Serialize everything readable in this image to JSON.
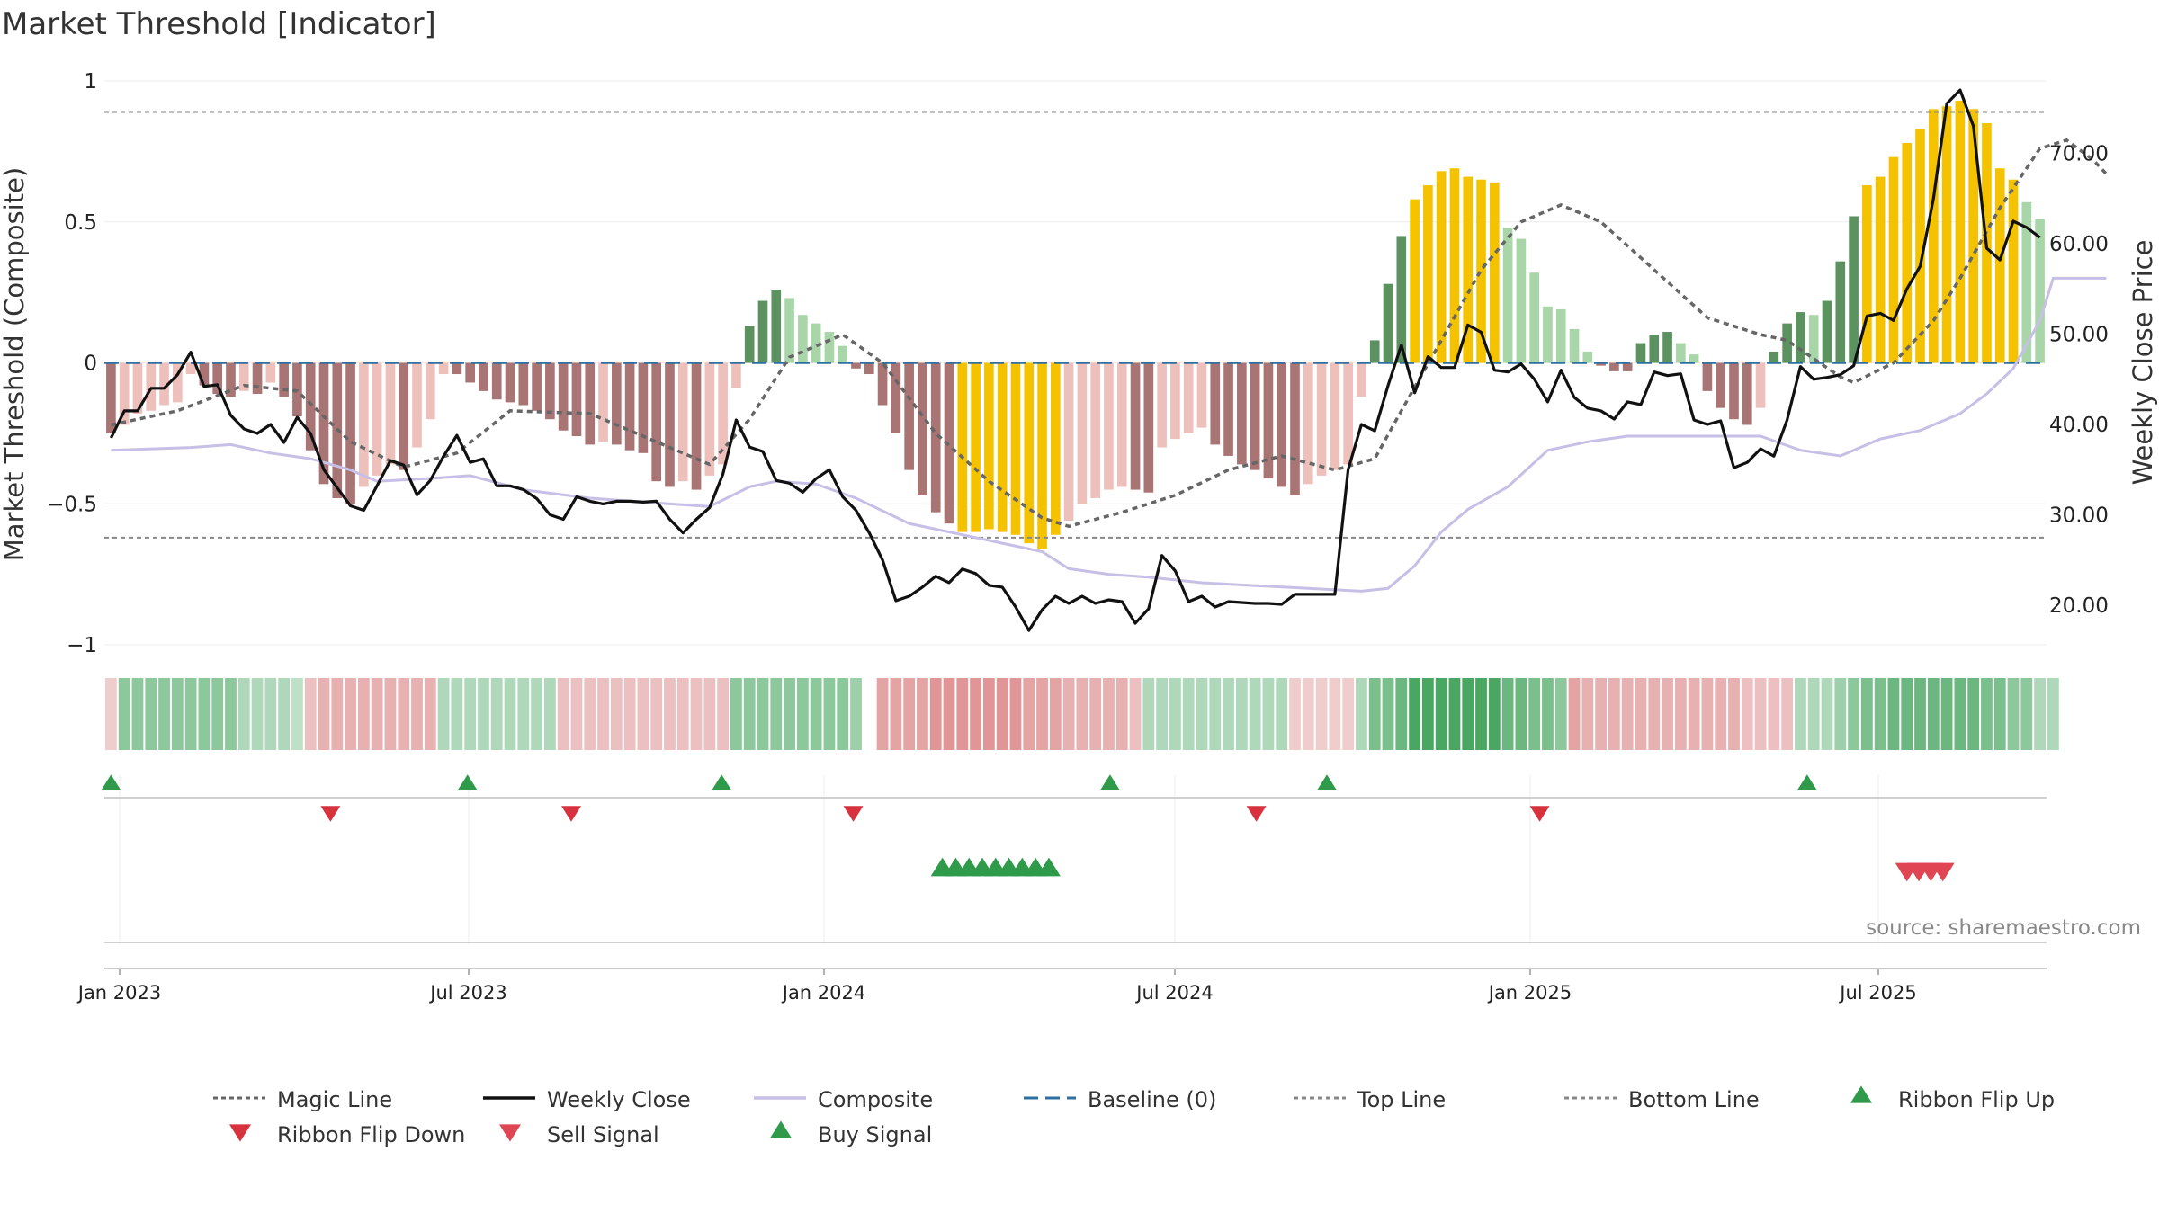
{
  "chart_data": {
    "type": "bar",
    "title": "Market Threshold [Indicator]",
    "ylabel": "Market Threshold (Composite)",
    "y2label": "Weekly Close Price",
    "source": "source: sharemaestro.com",
    "ylim": [
      -1,
      1
    ],
    "y2lim": [
      8,
      85
    ],
    "y_ticks": [
      "1",
      "0.5",
      "0",
      "−0.5",
      "−1"
    ],
    "y2_ticks": [
      "70.00",
      "60.00",
      "50.00",
      "40.00",
      "30.00",
      "20.00"
    ],
    "x_ticks": [
      "Jan 2023",
      "Jul 2023",
      "Jan 2024",
      "Jul 2024",
      "Jan 2025",
      "Jul 2025"
    ],
    "top_line": 0.89,
    "bottom_line": -0.62,
    "composite_hist": [
      -0.25,
      -0.22,
      -0.18,
      -0.17,
      -0.15,
      -0.14,
      -0.04,
      -0.08,
      -0.11,
      -0.12,
      -0.1,
      -0.11,
      -0.07,
      -0.12,
      -0.19,
      -0.31,
      -0.43,
      -0.48,
      -0.5,
      -0.44,
      -0.4,
      -0.36,
      -0.38,
      -0.3,
      -0.2,
      -0.04,
      -0.04,
      -0.07,
      -0.1,
      -0.13,
      -0.14,
      -0.15,
      -0.17,
      -0.2,
      -0.24,
      -0.26,
      -0.29,
      -0.28,
      -0.29,
      -0.31,
      -0.32,
      -0.42,
      -0.44,
      -0.42,
      -0.45,
      -0.4,
      -0.36,
      -0.09,
      0.13,
      0.22,
      0.26,
      0.23,
      0.17,
      0.14,
      0.11,
      0.06,
      -0.02,
      -0.04,
      -0.15,
      -0.25,
      -0.38,
      -0.47,
      -0.53,
      -0.57,
      -0.6,
      -0.6,
      -0.59,
      -0.6,
      -0.61,
      -0.64,
      -0.66,
      -0.61,
      -0.56,
      -0.5,
      -0.48,
      -0.45,
      -0.44,
      -0.45,
      -0.46,
      -0.3,
      -0.27,
      -0.25,
      -0.23,
      -0.29,
      -0.33,
      -0.36,
      -0.38,
      -0.41,
      -0.44,
      -0.47,
      -0.43,
      -0.4,
      -0.38,
      -0.36,
      -0.12,
      0.08,
      0.28,
      0.45,
      0.58,
      0.63,
      0.68,
      0.69,
      0.66,
      0.65,
      0.64,
      0.48,
      0.44,
      0.32,
      0.2,
      0.19,
      0.12,
      0.04,
      -0.01,
      -0.03,
      -0.03,
      0.07,
      0.1,
      0.11,
      0.07,
      0.03,
      -0.1,
      -0.16,
      -0.2,
      -0.22,
      -0.16,
      0.04,
      0.14,
      0.18,
      0.17,
      0.22,
      0.36,
      0.52,
      0.63,
      0.66,
      0.73,
      0.78,
      0.83,
      0.9,
      0.91,
      0.93,
      0.9,
      0.85,
      0.69,
      0.65,
      0.57,
      0.51
    ],
    "ribbon": [
      -0.2,
      0.5,
      0.5,
      0.5,
      0.5,
      0.5,
      0.5,
      0.5,
      0.5,
      0.5,
      0.3,
      0.3,
      0.3,
      0.3,
      0.2,
      -0.3,
      -0.4,
      -0.4,
      -0.4,
      -0.4,
      -0.4,
      -0.4,
      -0.4,
      -0.4,
      -0.4,
      0.3,
      0.3,
      0.3,
      0.3,
      0.3,
      0.3,
      0.3,
      0.3,
      0.3,
      -0.3,
      -0.3,
      -0.3,
      -0.3,
      -0.3,
      -0.3,
      -0.3,
      -0.3,
      -0.3,
      -0.3,
      -0.3,
      -0.3,
      -0.3,
      0.5,
      0.5,
      0.5,
      0.5,
      0.5,
      0.5,
      0.5,
      0.5,
      0.5,
      0.4,
      0.4,
      -0.5,
      -0.5,
      -0.5,
      -0.5,
      -0.6,
      -0.6,
      -0.6,
      -0.6,
      -0.6,
      -0.6,
      -0.6,
      -0.5,
      -0.5,
      -0.5,
      -0.4,
      -0.4,
      -0.4,
      -0.4,
      -0.4,
      -0.3,
      0.3,
      0.3,
      0.3,
      0.3,
      0.3,
      0.3,
      0.3,
      0.3,
      0.3,
      0.3,
      0.3,
      -0.2,
      -0.2,
      -0.2,
      -0.2,
      -0.2,
      0.3,
      0.6,
      0.6,
      0.7,
      0.9,
      0.9,
      0.9,
      0.9,
      0.9,
      0.9,
      0.9,
      0.7,
      0.7,
      0.6,
      0.6,
      0.5,
      -0.5,
      -0.4,
      -0.4,
      -0.4,
      -0.4,
      -0.4,
      -0.4,
      -0.4,
      -0.4,
      -0.4,
      -0.4,
      -0.4,
      -0.4,
      -0.3,
      -0.3,
      -0.3,
      -0.3,
      0.3,
      0.3,
      0.3,
      0.4,
      0.5,
      0.6,
      0.6,
      0.7,
      0.7,
      0.7,
      0.7,
      0.7,
      0.7,
      0.7,
      0.6,
      0.6,
      0.5,
      0.5,
      0.3,
      0.3
    ],
    "ribbon_gaps": [
      57
    ],
    "magic_line": [
      [
        0,
        -0.22
      ],
      [
        5,
        -0.17
      ],
      [
        10,
        -0.08
      ],
      [
        14,
        -0.1
      ],
      [
        18,
        -0.28
      ],
      [
        22,
        -0.37
      ],
      [
        26,
        -0.32
      ],
      [
        30,
        -0.17
      ],
      [
        36,
        -0.18
      ],
      [
        42,
        -0.3
      ],
      [
        45,
        -0.36
      ],
      [
        48,
        -0.2
      ],
      [
        51,
        0.02
      ],
      [
        55,
        0.1
      ],
      [
        58,
        0.0
      ],
      [
        62,
        -0.25
      ],
      [
        66,
        -0.42
      ],
      [
        70,
        -0.55
      ],
      [
        72,
        -0.58
      ],
      [
        76,
        -0.53
      ],
      [
        80,
        -0.47
      ],
      [
        84,
        -0.38
      ],
      [
        88,
        -0.33
      ],
      [
        92,
        -0.38
      ],
      [
        95,
        -0.34
      ],
      [
        97,
        -0.17
      ],
      [
        100,
        0.08
      ],
      [
        103,
        0.33
      ],
      [
        106,
        0.5
      ],
      [
        109,
        0.56
      ],
      [
        112,
        0.5
      ],
      [
        116,
        0.33
      ],
      [
        120,
        0.16
      ],
      [
        124,
        0.1
      ],
      [
        126,
        0.08
      ],
      [
        130,
        -0.05
      ],
      [
        131,
        -0.07
      ],
      [
        134,
        0.0
      ],
      [
        137,
        0.15
      ],
      [
        139,
        0.3
      ],
      [
        142,
        0.55
      ],
      [
        145,
        0.76
      ],
      [
        147,
        0.79
      ],
      [
        149,
        0.72
      ],
      [
        150,
        0.67
      ]
    ],
    "composite_line": [
      [
        0,
        -0.31
      ],
      [
        6,
        -0.3
      ],
      [
        9,
        -0.29
      ],
      [
        12,
        -0.32
      ],
      [
        15,
        -0.34
      ],
      [
        18,
        -0.38
      ],
      [
        20,
        -0.42
      ],
      [
        24,
        -0.41
      ],
      [
        27,
        -0.4
      ],
      [
        31,
        -0.45
      ],
      [
        36,
        -0.48
      ],
      [
        45,
        -0.51
      ],
      [
        48,
        -0.44
      ],
      [
        50,
        -0.42
      ],
      [
        53,
        -0.43
      ],
      [
        56,
        -0.48
      ],
      [
        60,
        -0.57
      ],
      [
        64,
        -0.61
      ],
      [
        67,
        -0.64
      ],
      [
        70,
        -0.67
      ],
      [
        72,
        -0.73
      ],
      [
        75,
        -0.75
      ],
      [
        78,
        -0.76
      ],
      [
        80,
        -0.77
      ],
      [
        82,
        -0.78
      ],
      [
        86,
        -0.79
      ],
      [
        90,
        -0.8
      ],
      [
        94,
        -0.81
      ],
      [
        96,
        -0.8
      ],
      [
        98,
        -0.72
      ],
      [
        100,
        -0.6
      ],
      [
        102,
        -0.52
      ],
      [
        105,
        -0.44
      ],
      [
        108,
        -0.31
      ],
      [
        111,
        -0.28
      ],
      [
        114,
        -0.26
      ],
      [
        118,
        -0.26
      ],
      [
        121,
        -0.26
      ],
      [
        124,
        -0.26
      ],
      [
        127,
        -0.31
      ],
      [
        130,
        -0.33
      ],
      [
        133,
        -0.27
      ],
      [
        136,
        -0.24
      ],
      [
        139,
        -0.18
      ],
      [
        141,
        -0.11
      ],
      [
        143,
        -0.02
      ],
      [
        145,
        0.15
      ],
      [
        146,
        0.3
      ],
      [
        148,
        0.3
      ],
      [
        150,
        0.3
      ]
    ],
    "weekly_close": [
      [
        0,
        38.5
      ],
      [
        1,
        41.5
      ],
      [
        2,
        41.5
      ],
      [
        3,
        44
      ],
      [
        4,
        44
      ],
      [
        5,
        45.5
      ],
      [
        6,
        48
      ],
      [
        7,
        44.2
      ],
      [
        8,
        44.4
      ],
      [
        9,
        41
      ],
      [
        10,
        39.5
      ],
      [
        11,
        39
      ],
      [
        12,
        40
      ],
      [
        13,
        38
      ],
      [
        14,
        40.8
      ],
      [
        15,
        39
      ],
      [
        16,
        35
      ],
      [
        17,
        33
      ],
      [
        18,
        31
      ],
      [
        19,
        30.5
      ],
      [
        20,
        33.2
      ],
      [
        21,
        36
      ],
      [
        22,
        35.5
      ],
      [
        23,
        32.2
      ],
      [
        24,
        33.8
      ],
      [
        25,
        36.5
      ],
      [
        26,
        38.8
      ],
      [
        27,
        35.8
      ],
      [
        28,
        36.2
      ],
      [
        29,
        33.2
      ],
      [
        30,
        33.2
      ],
      [
        31,
        32.8
      ],
      [
        32,
        31.8
      ],
      [
        33,
        30
      ],
      [
        34,
        29.5
      ],
      [
        35,
        32
      ],
      [
        36,
        31.5
      ],
      [
        37,
        31.2
      ],
      [
        38,
        31.5
      ],
      [
        39,
        31.5
      ],
      [
        40,
        31.4
      ],
      [
        41,
        31.5
      ],
      [
        42,
        29.5
      ],
      [
        43,
        28
      ],
      [
        44,
        29.5
      ],
      [
        45,
        30.8
      ],
      [
        46,
        34.5
      ],
      [
        47,
        40.5
      ],
      [
        48,
        37.5
      ],
      [
        49,
        37
      ],
      [
        50,
        33.8
      ],
      [
        51,
        33.5
      ],
      [
        52,
        32.5
      ],
      [
        53,
        34
      ],
      [
        54,
        35
      ],
      [
        55,
        32
      ],
      [
        56,
        30.5
      ],
      [
        57,
        28
      ],
      [
        58,
        25
      ],
      [
        59,
        20.5
      ],
      [
        60,
        21
      ],
      [
        61,
        22
      ],
      [
        62,
        23.2
      ],
      [
        63,
        22.5
      ],
      [
        64,
        24
      ],
      [
        65,
        23.5
      ],
      [
        66,
        22.2
      ],
      [
        67,
        22
      ],
      [
        68,
        19.8
      ],
      [
        69,
        17.2
      ],
      [
        70,
        19.5
      ],
      [
        71,
        21
      ],
      [
        72,
        20.2
      ],
      [
        73,
        21
      ],
      [
        74,
        20.2
      ],
      [
        75,
        20.6
      ],
      [
        76,
        20.4
      ],
      [
        77,
        18
      ],
      [
        78,
        19.6
      ],
      [
        79,
        25.5
      ],
      [
        80,
        23.8
      ],
      [
        81,
        20.4
      ],
      [
        82,
        21
      ],
      [
        83,
        19.8
      ],
      [
        84,
        20.4
      ],
      [
        85,
        20.3
      ],
      [
        86,
        20.2
      ],
      [
        87,
        20.2
      ],
      [
        88,
        20.1
      ],
      [
        89,
        21.2
      ],
      [
        90,
        21.2
      ],
      [
        91,
        21.2
      ],
      [
        92,
        21.2
      ],
      [
        93,
        35
      ],
      [
        94,
        40
      ],
      [
        95,
        39.3
      ],
      [
        96,
        44.3
      ],
      [
        97,
        48.8
      ],
      [
        98,
        43.5
      ],
      [
        99,
        47.5
      ],
      [
        100,
        46.3
      ],
      [
        101,
        46.3
      ],
      [
        102,
        51
      ],
      [
        103,
        50.2
      ],
      [
        104,
        46
      ],
      [
        105,
        45.8
      ],
      [
        106,
        46.7
      ],
      [
        107,
        45
      ],
      [
        108,
        42.5
      ],
      [
        109,
        46
      ],
      [
        110,
        43
      ],
      [
        111,
        41.8
      ],
      [
        112,
        41.5
      ],
      [
        113,
        40.6
      ],
      [
        114,
        42.5
      ],
      [
        115,
        42.2
      ],
      [
        116,
        45.8
      ],
      [
        117,
        45.4
      ],
      [
        118,
        45.6
      ],
      [
        119,
        40.5
      ],
      [
        120,
        40
      ],
      [
        121,
        40.4
      ],
      [
        122,
        35.2
      ],
      [
        123,
        35.8
      ],
      [
        124,
        37.3
      ],
      [
        125,
        36.5
      ],
      [
        126,
        40.5
      ],
      [
        127,
        46.4
      ],
      [
        128,
        45
      ],
      [
        129,
        45.2
      ],
      [
        130,
        45.5
      ],
      [
        131,
        46.5
      ],
      [
        132,
        52
      ],
      [
        133,
        52.3
      ],
      [
        134,
        51.5
      ],
      [
        135,
        55
      ],
      [
        136,
        57.5
      ],
      [
        137,
        65
      ],
      [
        138,
        75.5
      ],
      [
        139,
        77
      ],
      [
        140,
        73
      ],
      [
        141,
        59.5
      ],
      [
        142,
        58.2
      ],
      [
        143,
        62.5
      ],
      [
        144,
        61.8
      ],
      [
        145,
        60.7
      ]
    ],
    "ribbon_flip_up": [
      0.0,
      26.8,
      45.9,
      75.1,
      91.4,
      127.5
    ],
    "ribbon_flip_down": [
      16.5,
      34.6,
      55.8,
      86.1,
      107.4
    ],
    "buy_signals": [
      62.5,
      63.5,
      64.5,
      65.5,
      66.5,
      67.5,
      68.5,
      69.5,
      70.5
    ],
    "sell_signals": [
      135.0,
      135.9,
      136.8,
      137.7
    ],
    "legend": [
      "Magic Line",
      "Weekly Close",
      "Composite",
      "Baseline (0)",
      "Top Line",
      "Bottom Line",
      "Ribbon Flip Up",
      "Ribbon Flip Down",
      "Sell Signal",
      "Buy Signal"
    ],
    "colors": {
      "pos_dark": "#5c9160",
      "pos_light": "#a9d6a9",
      "neg_dark": "#a87474",
      "neg_light": "#eec0bb",
      "extreme": "#f5c200",
      "composite_line": "#c7bfe6",
      "close_line": "#111111",
      "magic_line": "#666666",
      "baseline": "#2f6fa0",
      "threshold_line": "#888888",
      "buy": "#2e9a4a",
      "sell": "#d8323f",
      "sell_signal": "#e04553"
    }
  }
}
